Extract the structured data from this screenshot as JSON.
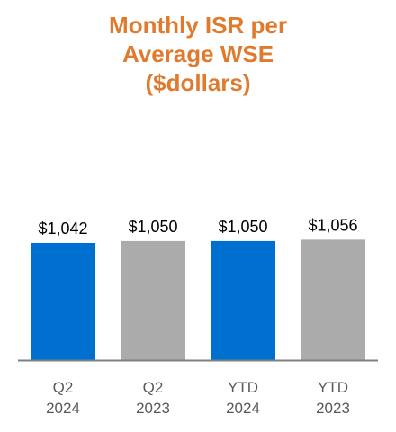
{
  "chart_data": {
    "type": "bar",
    "title_lines": [
      "Monthly ISR per",
      "Average WSE",
      "($dollars)"
    ],
    "categories": [
      [
        "Q2",
        "2024"
      ],
      [
        "Q2",
        "2023"
      ],
      [
        "YTD",
        "2024"
      ],
      [
        "YTD",
        "2023"
      ]
    ],
    "values": [
      1042,
      1050,
      1050,
      1056
    ],
    "value_labels": [
      "$1,042",
      "$1,050",
      "$1,050",
      "$1,056"
    ],
    "bar_colors": [
      "#0070d0",
      "#ababab",
      "#0070d0",
      "#ababab"
    ],
    "title_color": "#e07a2e",
    "axis_color": "#7f7f7f",
    "xlabel": "",
    "ylabel": "",
    "grid": false,
    "legend": false
  }
}
